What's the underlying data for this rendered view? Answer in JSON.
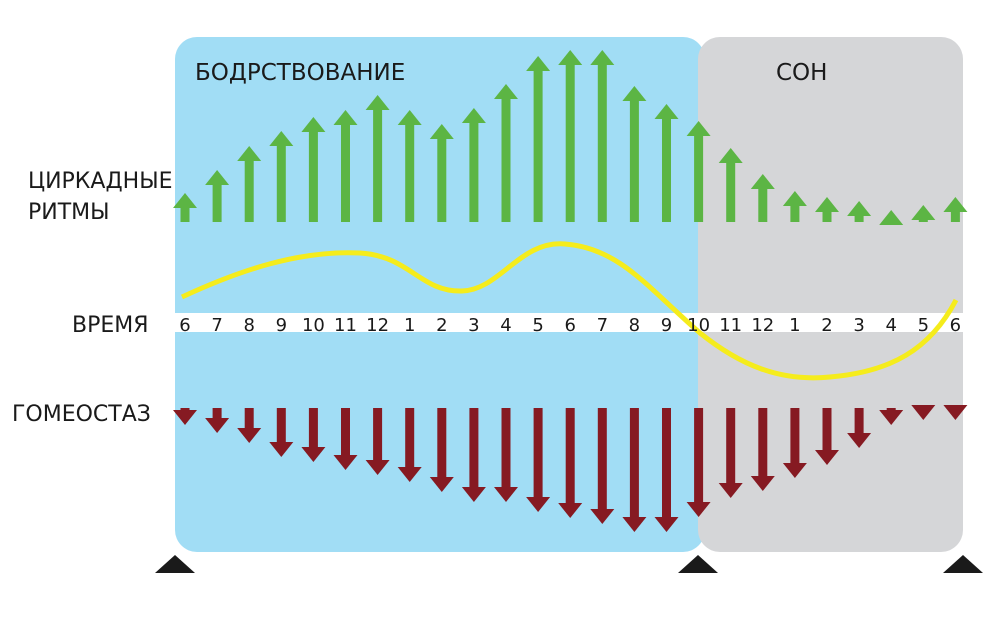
{
  "labels": {
    "wake": "БОДРСТВОВАНИЕ",
    "sleep": "СОН",
    "circadian_line1": "ЦИРКАДНЫЕ",
    "circadian_line2": "РИТМЫ",
    "time": "ВРЕМЯ",
    "homeostasis": "ГОМЕОСТАЗ"
  },
  "hours": [
    "6",
    "7",
    "8",
    "9",
    "10",
    "11",
    "12",
    "1",
    "2",
    "3",
    "4",
    "5",
    "6",
    "7",
    "8",
    "9",
    "10",
    "11",
    "12",
    "1",
    "2",
    "3",
    "4",
    "5",
    "6"
  ],
  "circadian_arrows": [
    29,
    52,
    76,
    91,
    105,
    112,
    127,
    112,
    98,
    114,
    138,
    166,
    172,
    172,
    136,
    118,
    101,
    74,
    48,
    31,
    25,
    21,
    12,
    17,
    25
  ],
  "homeostasis_arrows": [
    17,
    25,
    35,
    49,
    54,
    62,
    67,
    74,
    84,
    94,
    94,
    104,
    110,
    116,
    124,
    124,
    109,
    90,
    83,
    70,
    57,
    40,
    17,
    12,
    12
  ],
  "wake_hours": 16,
  "sleep_hours": 8,
  "colors": {
    "wake_bg": "#a1ddf5",
    "sleep_bg": "#d5d6d8",
    "circadian": "#5cb544",
    "homeostasis": "#861a22",
    "curve": "#f5ec1c",
    "marker": "#1a1a1a"
  }
}
